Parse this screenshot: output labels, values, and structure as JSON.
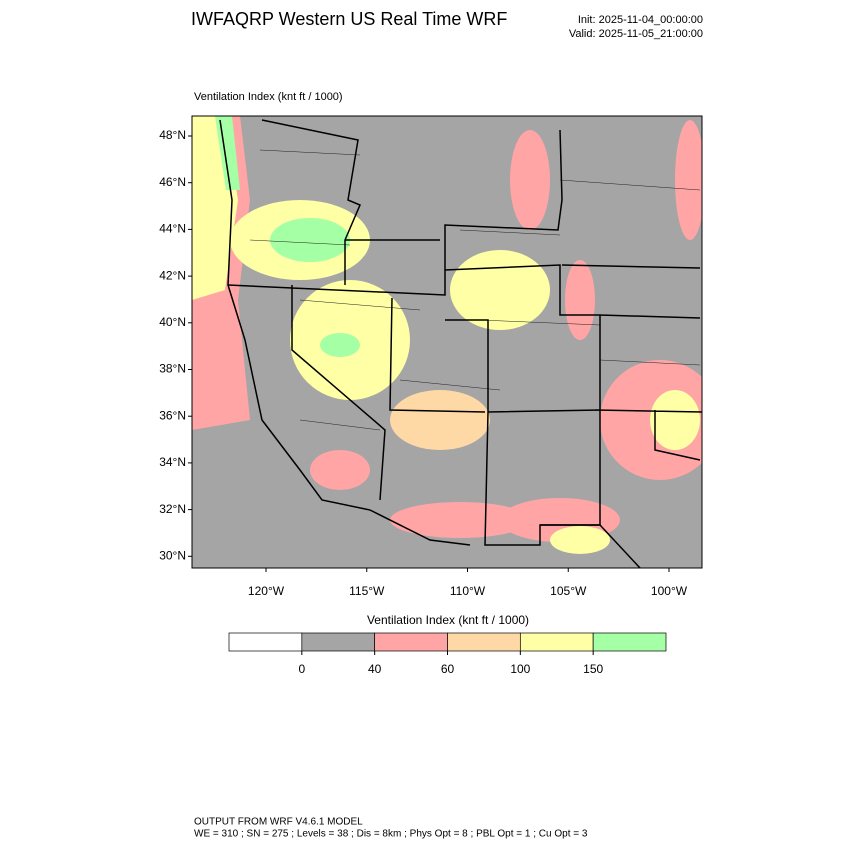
{
  "header": {
    "title": "IWFAQRP Western US Real Time WRF",
    "init": "Init: 2025-11-04_00:00:00",
    "valid": "Valid: 2025-11-05_21:00:00"
  },
  "map": {
    "title": "Ventilation Index   (knt ft / 1000)",
    "lat_labels": [
      "48°N",
      "46°N",
      "44°N",
      "42°N",
      "40°N",
      "38°N",
      "36°N",
      "34°N",
      "32°N",
      "30°N"
    ],
    "lon_labels": [
      "120°W",
      "115°W",
      "110°W",
      "105°W",
      "100°W"
    ]
  },
  "colorbar": {
    "title": "Ventilation Index  (knt ft / 1000)",
    "colors": [
      "#ffffff",
      "#a5a5a5",
      "#ffa5a5",
      "#ffd9a5",
      "#ffffa5",
      "#a5ffa5"
    ],
    "ticks": [
      0,
      40,
      60,
      100,
      150
    ]
  },
  "footer": {
    "line1": "OUTPUT FROM WRF V4.6.1 MODEL",
    "line2": "WE = 310 ; SN = 275 ; Levels = 38 ; Dis = 8km ; Phys Opt = 8 ; PBL Opt = 1 ; Cu Opt = 3"
  }
}
